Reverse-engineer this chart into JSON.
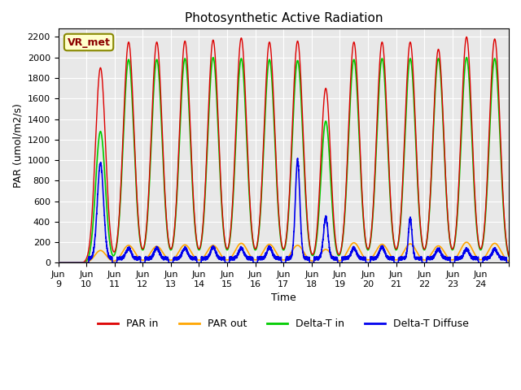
{
  "title": "Photosynthetic Active Radiation",
  "ylabel": "PAR (umol/m2/s)",
  "xlabel": "Time",
  "annotation": "VR_met",
  "ylim": [
    0,
    2280
  ],
  "yticks": [
    0,
    200,
    400,
    600,
    800,
    1000,
    1200,
    1400,
    1600,
    1800,
    2000,
    2200
  ],
  "bg_color": "#e8e8e8",
  "colors": {
    "PAR in": "#dd0000",
    "PAR out": "#ffa500",
    "Delta-T in": "#00cc00",
    "Delta-T Diffuse": "#0000ee"
  },
  "legend_labels": [
    "PAR in",
    "PAR out",
    "Delta-T in",
    "Delta-T Diffuse"
  ],
  "xlim": [
    0,
    16
  ],
  "xtick_positions": [
    0,
    1,
    2,
    3,
    4,
    5,
    6,
    7,
    8,
    9,
    10,
    11,
    12,
    13,
    14,
    15,
    16
  ],
  "xticklabels": [
    "Jun\n9",
    "Jun\n10",
    "Jun\n11",
    "Jun\n12",
    "Jun\n13",
    "Jun\n14",
    "Jun\n15",
    "Jun\n16",
    "Jun\n17",
    "Jun\n18",
    "Jun\n19",
    "Jun\n20",
    "Jun\n21",
    "Jun\n22",
    "Jun\n23",
    "Jun\n24",
    ""
  ]
}
